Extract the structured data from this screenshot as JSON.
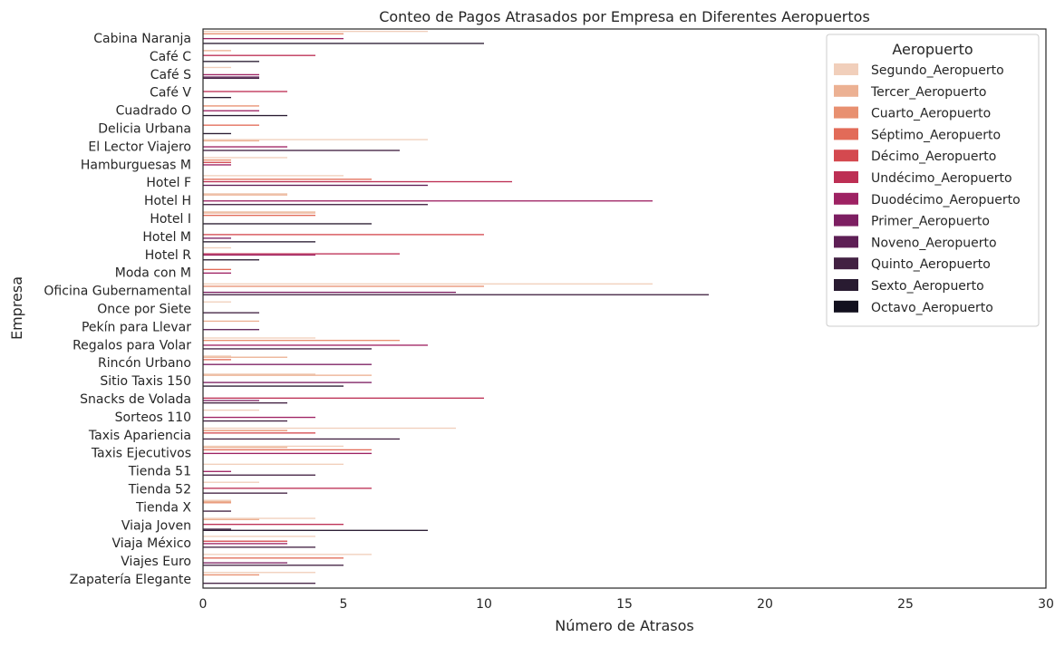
{
  "chart_data": {
    "type": "bar",
    "orientation": "horizontal",
    "title": "Conteo de Pagos Atrasados por Empresa en Diferentes Aeropuertos",
    "xlabel": "Número de Atrasos",
    "ylabel": "Empresa",
    "xlim": [
      0,
      30
    ],
    "xticks": [
      "0",
      "5",
      "10",
      "15",
      "20",
      "25",
      "30"
    ],
    "grid": false,
    "legend": {
      "title": "Aeropuerto",
      "placement": "top-right"
    },
    "categories": [
      "Cabina Naranja",
      "Café C",
      "Café S",
      "Café V",
      "Cuadrado O",
      "Delicia Urbana",
      "El Lector Viajero",
      "Hamburguesas M",
      "Hotel F",
      "Hotel H",
      "Hotel I",
      "Hotel M",
      "Hotel R",
      "Moda con M",
      "Oficina Gubernamental",
      "Once por Siete",
      "Pekín para Llevar",
      "Regalos para Volar",
      "Rincón Urbano",
      "Sitio Taxis 150",
      "Snacks de Volada",
      "Sorteos 110",
      "Taxis Apariencia",
      "Taxis Ejecutivos",
      "Tienda 51",
      "Tienda 52",
      "Tienda X",
      "Viaja Joven",
      "Viaja México",
      "Viajes Euro",
      "Zapatería Elegante"
    ],
    "series": [
      {
        "name": "Segundo_Aeropuerto",
        "color": "#f1cfbb",
        "values": [
          8,
          0,
          1,
          0,
          0,
          0,
          8,
          3,
          5,
          3,
          4,
          0,
          1,
          0,
          16,
          1,
          0,
          4,
          1,
          4,
          0,
          2,
          9,
          5,
          5,
          2,
          1,
          4,
          4,
          6,
          4
        ]
      },
      {
        "name": "Tercer_Aeropuerto",
        "color": "#ecb193",
        "values": [
          0,
          1,
          0,
          0,
          0,
          0,
          2,
          0,
          0,
          3,
          4,
          0,
          0,
          0,
          0,
          0,
          2,
          0,
          3,
          6,
          0,
          0,
          0,
          3,
          0,
          0,
          1,
          2,
          0,
          0,
          0
        ]
      },
      {
        "name": "Cuarto_Aeropuerto",
        "color": "#e89070",
        "values": [
          5,
          0,
          0,
          0,
          2,
          0,
          0,
          1,
          0,
          0,
          0,
          0,
          0,
          0,
          10,
          0,
          0,
          7,
          0,
          0,
          0,
          0,
          3,
          0,
          0,
          0,
          1,
          0,
          0,
          0,
          2
        ]
      },
      {
        "name": "Séptimo_Aeropuerto",
        "color": "#e26b58",
        "values": [
          0,
          0,
          0,
          0,
          0,
          2,
          0,
          0,
          6,
          0,
          4,
          0,
          0,
          1,
          0,
          0,
          0,
          0,
          1,
          0,
          0,
          0,
          0,
          6,
          0,
          0,
          0,
          0,
          0,
          5,
          0
        ]
      },
      {
        "name": "Décimo_Aeropuerto",
        "color": "#d4494f",
        "values": [
          0,
          0,
          0,
          0,
          0,
          0,
          0,
          1,
          0,
          0,
          0,
          10,
          0,
          0,
          0,
          0,
          0,
          0,
          0,
          0,
          0,
          0,
          4,
          0,
          0,
          0,
          0,
          0,
          3,
          0,
          0
        ]
      },
      {
        "name": "Undécimo_Aeropuerto",
        "color": "#bd2f54",
        "values": [
          0,
          4,
          0,
          3,
          0,
          0,
          0,
          0,
          11,
          0,
          0,
          0,
          7,
          0,
          0,
          0,
          0,
          0,
          0,
          0,
          10,
          0,
          0,
          0,
          0,
          6,
          0,
          5,
          0,
          0,
          0
        ]
      },
      {
        "name": "Duodécimo_Aeropuerto",
        "color": "#9e2263",
        "values": [
          5,
          0,
          2,
          0,
          2,
          0,
          3,
          1,
          0,
          16,
          0,
          0,
          4,
          1,
          0,
          0,
          0,
          8,
          0,
          0,
          0,
          4,
          0,
          6,
          1,
          0,
          0,
          0,
          3,
          0,
          0
        ]
      },
      {
        "name": "Primer_Aeropuerto",
        "color": "#7d1f62",
        "values": [
          0,
          0,
          0,
          0,
          0,
          0,
          0,
          0,
          0,
          0,
          0,
          1,
          0,
          0,
          9,
          0,
          0,
          0,
          6,
          6,
          2,
          0,
          0,
          0,
          0,
          0,
          0,
          0,
          0,
          3,
          0
        ]
      },
      {
        "name": "Noveno_Aeropuerto",
        "color": "#5e1f55",
        "values": [
          0,
          0,
          2,
          0,
          0,
          0,
          0,
          0,
          8,
          0,
          0,
          0,
          0,
          0,
          0,
          0,
          2,
          0,
          0,
          0,
          0,
          0,
          0,
          0,
          0,
          0,
          0,
          0,
          0,
          0,
          0
        ]
      },
      {
        "name": "Quinto_Aeropuerto",
        "color": "#422142",
        "values": [
          0,
          0,
          2,
          0,
          0,
          0,
          7,
          0,
          0,
          8,
          0,
          0,
          0,
          0,
          18,
          2,
          0,
          6,
          0,
          0,
          3,
          3,
          7,
          0,
          4,
          3,
          1,
          1,
          4,
          5,
          4
        ]
      },
      {
        "name": "Sexto_Aeropuerto",
        "color": "#291b31",
        "values": [
          10,
          2,
          0,
          1,
          3,
          1,
          0,
          0,
          0,
          0,
          6,
          4,
          2,
          0,
          0,
          0,
          0,
          0,
          0,
          5,
          0,
          0,
          0,
          0,
          0,
          0,
          0,
          8,
          0,
          0,
          0
        ]
      },
      {
        "name": "Octavo_Aeropuerto",
        "color": "#12101e",
        "values": [
          0,
          0,
          0,
          0,
          0,
          0,
          0,
          0,
          0,
          0,
          0,
          0,
          0,
          0,
          0,
          0,
          0,
          0,
          0,
          0,
          0,
          0,
          0,
          0,
          0,
          0,
          0,
          0,
          0,
          0,
          0
        ]
      }
    ]
  }
}
